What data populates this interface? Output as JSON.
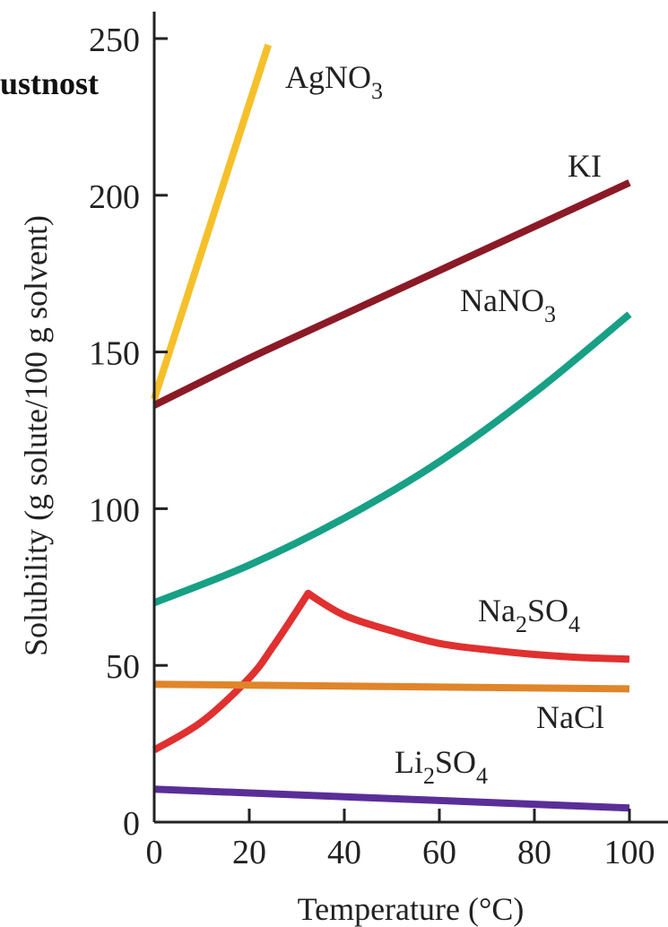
{
  "fragment_text": "ustnost",
  "chart_data": {
    "type": "line",
    "xlabel": "Temperature (°C)",
    "ylabel": "Solubility (g solute/100 g solvent)",
    "xlim": [
      0,
      100
    ],
    "ylim": [
      0,
      250
    ],
    "x_ticks": [
      0,
      20,
      40,
      60,
      80,
      100
    ],
    "y_ticks": [
      0,
      50,
      100,
      150,
      200,
      250
    ],
    "grid": false,
    "legend": "none (series labeled directly on the lines)",
    "series": [
      {
        "name": "AgNO3",
        "label_main": "AgNO",
        "label_sub": "3",
        "label_tail": "",
        "color": "#f5c02a",
        "x": [
          0,
          24
        ],
        "y": [
          135,
          248
        ]
      },
      {
        "name": "KI",
        "label_main": "KI",
        "label_sub": "",
        "label_tail": "",
        "color": "#8b1a26",
        "x": [
          0,
          20,
          40,
          60,
          80,
          100
        ],
        "y": [
          133,
          148,
          162,
          176,
          190,
          204
        ]
      },
      {
        "name": "NaNO3",
        "label_main": "NaNO",
        "label_sub": "3",
        "label_tail": "",
        "color": "#17a085",
        "x": [
          0,
          20,
          40,
          60,
          80,
          100
        ],
        "y": [
          70,
          82,
          97,
          115,
          137,
          162
        ]
      },
      {
        "name": "Na2SO4",
        "label_main": "Na",
        "label_sub": "2",
        "label_tail": "SO4",
        "color": "#e03030",
        "x": [
          0,
          10,
          20,
          25,
          32.4,
          40,
          50,
          60,
          70,
          80,
          90,
          100
        ],
        "y": [
          23,
          32,
          46,
          56,
          73,
          66,
          61,
          57,
          55,
          53.5,
          52.5,
          52
        ]
      },
      {
        "name": "NaCl",
        "label_main": "NaCl",
        "label_sub": "",
        "label_tail": "",
        "color": "#e0852a",
        "x": [
          0,
          100
        ],
        "y": [
          44,
          42.5
        ]
      },
      {
        "name": "Li2SO4",
        "label_main": "Li",
        "label_sub": "2",
        "label_tail": "SO4",
        "color": "#5a2e98",
        "x": [
          0,
          100
        ],
        "y": [
          10.5,
          4.5
        ]
      }
    ]
  }
}
